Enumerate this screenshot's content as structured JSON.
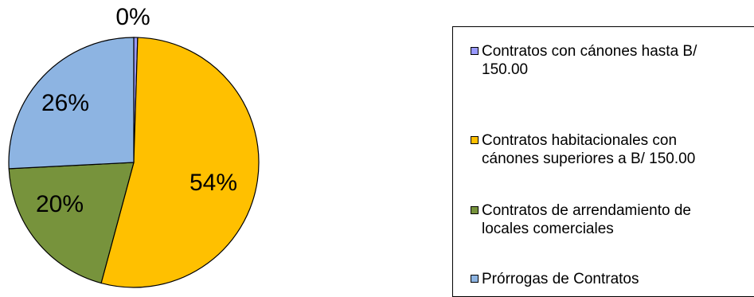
{
  "chart_data": {
    "type": "pie",
    "title": "",
    "slices": [
      {
        "label": "Contratos con cánones hasta B/ 150.00",
        "value": 0.5,
        "display": "0%",
        "color": "#9999ff"
      },
      {
        "label": "Contratos habitacionales con cánones superiores a B/ 150.00",
        "value": 53.7,
        "display": "54%",
        "color": "#ffc000"
      },
      {
        "label": "Contratos de arrendamiento de locales comerciales",
        "value": 20.0,
        "display": "20%",
        "color": "#77933c"
      },
      {
        "label": "Prórrogas de Contratos",
        "value": 25.8,
        "display": "26%",
        "color": "#8db4e2"
      }
    ],
    "legend_position": "right"
  }
}
